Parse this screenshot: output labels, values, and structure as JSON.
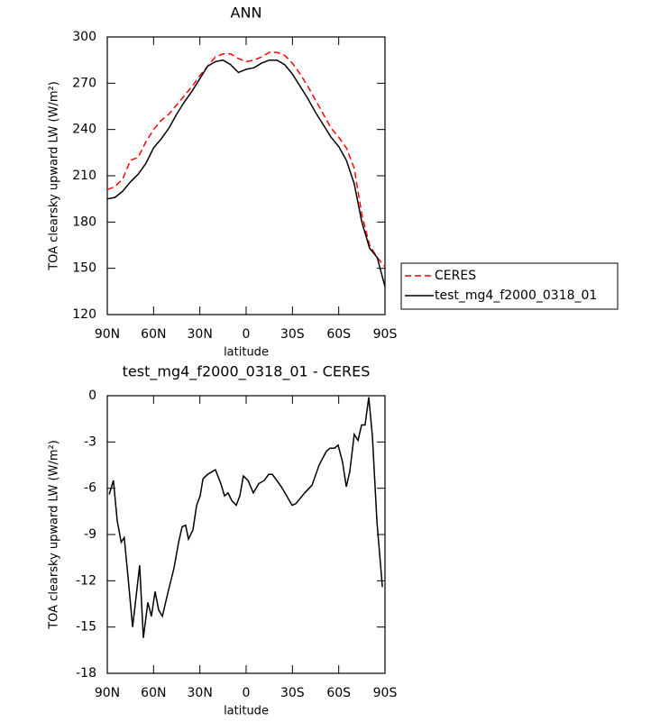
{
  "chart_data": [
    {
      "type": "line",
      "title": "ANN",
      "xlabel": "latitude",
      "ylabel": "TOA clearsky upward LW (W/m²)",
      "x": [
        90,
        85,
        80,
        75,
        70,
        65,
        60,
        55,
        50,
        45,
        40,
        35,
        30,
        25,
        20,
        15,
        10,
        5,
        0,
        -5,
        -10,
        -15,
        -20,
        -25,
        -30,
        -35,
        -40,
        -45,
        -50,
        -55,
        -60,
        -65,
        -70,
        -75,
        -80,
        -85,
        -90
      ],
      "series": [
        {
          "name": "CERES",
          "color": "#ff0000",
          "line_style": "dashed",
          "values": [
            201,
            203,
            208,
            220,
            222,
            232,
            240,
            246,
            250,
            256,
            262,
            268,
            275,
            281,
            287,
            289,
            289,
            286,
            284,
            285,
            287,
            290,
            290,
            288,
            283,
            276,
            268,
            259,
            250,
            241,
            235,
            228,
            215,
            185,
            165,
            157,
            151
          ]
        },
        {
          "name": "test_mg4_f2000_0318_01",
          "color": "#000000",
          "line_style": "solid",
          "values": [
            195,
            196,
            200,
            206,
            211,
            218,
            228,
            234,
            241,
            250,
            258,
            265,
            273,
            281,
            284,
            285,
            282,
            277,
            279,
            280,
            283,
            285,
            285,
            282,
            276,
            268,
            260,
            251,
            243,
            235,
            229,
            220,
            205,
            180,
            163,
            157,
            138
          ]
        }
      ],
      "xlim": [
        90,
        -90
      ],
      "xticks": [
        {
          "value": 90,
          "label": "90N"
        },
        {
          "value": 60,
          "label": "60N"
        },
        {
          "value": 30,
          "label": "30N"
        },
        0,
        {
          "value": -30,
          "label": "30S"
        },
        {
          "value": -60,
          "label": "60S"
        },
        {
          "value": -90,
          "label": "90S"
        }
      ],
      "ylim": [
        120,
        300
      ],
      "yticks": [
        120,
        150,
        180,
        210,
        240,
        270,
        300
      ],
      "legend": "right"
    },
    {
      "type": "line",
      "title": "test_mg4_f2000_0318_01 - CERES",
      "xlabel": "latitude",
      "ylabel": "TOA clearsky upward LW (W/m²)",
      "x": [
        88.8,
        86,
        83.6,
        81,
        79,
        76.6,
        73.6,
        69,
        66.6,
        63.7,
        61.4,
        59,
        56.7,
        54.3,
        50.8,
        46.8,
        43.8,
        41.5,
        39.2,
        37.4,
        34.5,
        32.1,
        29.8,
        28,
        25.1,
        19.9,
        16.4,
        14,
        11.7,
        9.3,
        6.4,
        4.1,
        1.8,
        -1.2,
        -4.7,
        -8.2,
        -11.7,
        -14.6,
        -17,
        -22.8,
        -26.3,
        -29.8,
        -32.2,
        -38,
        -42.7,
        -47.3,
        -52,
        -54.4,
        -57.3,
        -59.6,
        -62.5,
        -64.9,
        -67.2,
        -70.1,
        -72.5,
        -74.8,
        -77.1,
        -79.5,
        -81.8,
        -84.8,
        -88.3
      ],
      "values": [
        -6.4,
        -5.5,
        -8.1,
        -9.5,
        -9.2,
        -11.7,
        -15,
        -11,
        -15.7,
        -13.4,
        -14.3,
        -12.7,
        -13.9,
        -14.3,
        -12.8,
        -11.2,
        -9.5,
        -8.5,
        -8.4,
        -9.3,
        -8.7,
        -7.1,
        -6.5,
        -5.4,
        -5.1,
        -4.8,
        -5.7,
        -6.5,
        -6.3,
        -6.8,
        -7.1,
        -6.5,
        -5.2,
        -5.5,
        -6.3,
        -5.7,
        -5.5,
        -5.1,
        -5.1,
        -5.9,
        -6.5,
        -7.1,
        -7,
        -6.3,
        -5.8,
        -4.5,
        -3.6,
        -3.4,
        -3.4,
        -3.2,
        -4.3,
        -5.9,
        -4.9,
        -2.5,
        -2.9,
        -1.9,
        -1.9,
        -0.1,
        -2.6,
        -8.2,
        -12.4
      ],
      "color": "#000000",
      "xlim": [
        90,
        -90
      ],
      "xticks": [
        {
          "value": 90,
          "label": "90N"
        },
        {
          "value": 60,
          "label": "60N"
        },
        {
          "value": 30,
          "label": "30N"
        },
        0,
        {
          "value": -30,
          "label": "30S"
        },
        {
          "value": -60,
          "label": "60S"
        },
        {
          "value": -90,
          "label": "90S"
        }
      ],
      "ylim": [
        -18,
        0
      ],
      "yticks": [
        -18,
        -15,
        -12,
        -9,
        -6,
        -3,
        0
      ]
    }
  ]
}
